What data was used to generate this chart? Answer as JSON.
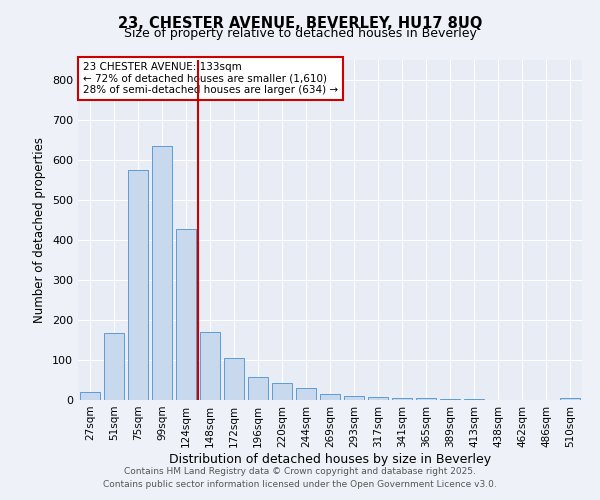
{
  "title_line1": "23, CHESTER AVENUE, BEVERLEY, HU17 8UQ",
  "title_line2": "Size of property relative to detached houses in Beverley",
  "xlabel": "Distribution of detached houses by size in Beverley",
  "ylabel": "Number of detached properties",
  "categories": [
    "27sqm",
    "51sqm",
    "75sqm",
    "99sqm",
    "124sqm",
    "148sqm",
    "172sqm",
    "196sqm",
    "220sqm",
    "244sqm",
    "269sqm",
    "293sqm",
    "317sqm",
    "341sqm",
    "365sqm",
    "389sqm",
    "413sqm",
    "438sqm",
    "462sqm",
    "486sqm",
    "510sqm"
  ],
  "values": [
    20,
    168,
    575,
    635,
    428,
    170,
    105,
    57,
    42,
    30,
    15,
    10,
    8,
    6,
    5,
    3,
    2,
    1,
    1,
    0,
    6
  ],
  "bar_color": "#c9d9ed",
  "bar_edge_color": "#5b9bd5",
  "vline_x": 4,
  "annotation_text": "23 CHESTER AVENUE: 133sqm\n← 72% of detached houses are smaller (1,610)\n28% of semi-detached houses are larger (634) →",
  "annotation_box_color": "#ffffff",
  "annotation_box_edge": "#cc0000",
  "vline_color": "#cc0000",
  "ylim": [
    0,
    850
  ],
  "yticks": [
    0,
    100,
    200,
    300,
    400,
    500,
    600,
    700,
    800
  ],
  "footer_line1": "Contains HM Land Registry data © Crown copyright and database right 2025.",
  "footer_line2": "Contains public sector information licensed under the Open Government Licence v3.0.",
  "bg_color": "#eef2f8",
  "plot_bg_color": "#e8edf5"
}
